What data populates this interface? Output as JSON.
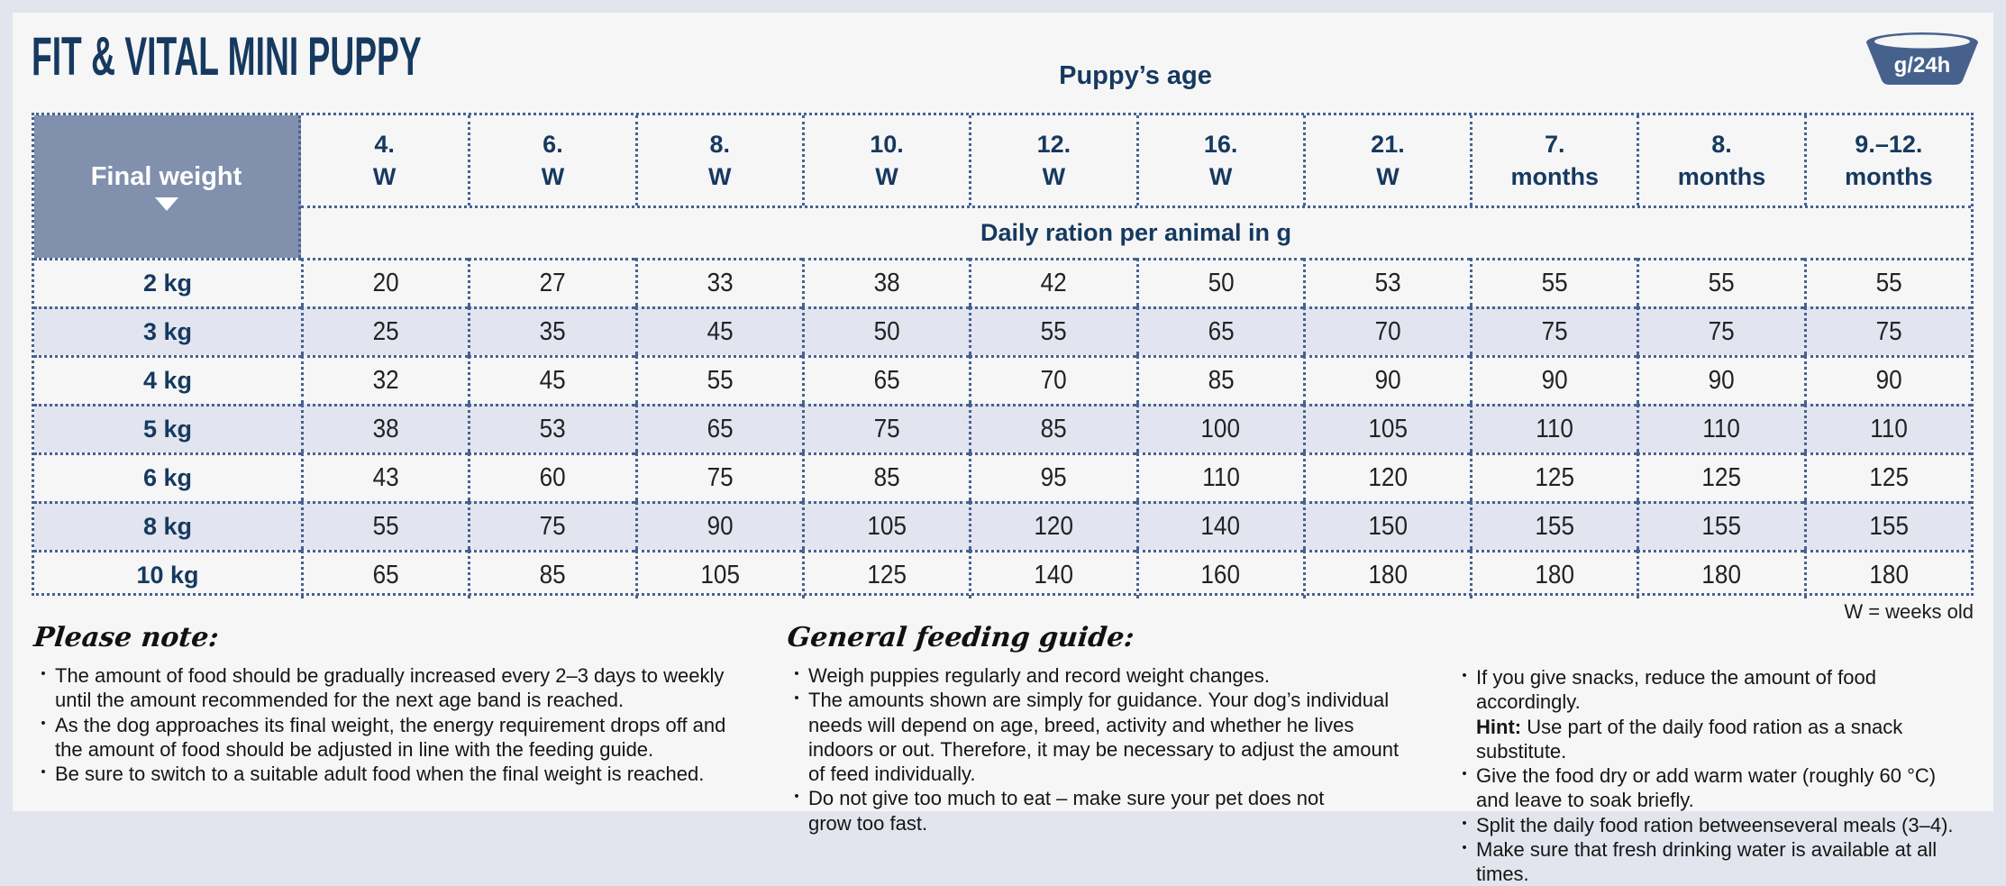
{
  "title": "FIT & VITAL MINI PUPPY",
  "bowl_icon": {
    "label": "g/24h"
  },
  "table": {
    "age_header": "Puppy’s age",
    "corner_label": "Final weight",
    "subheader": "Daily ration per animal in g",
    "columns": [
      {
        "line1": "4.",
        "line2": "W"
      },
      {
        "line1": "6.",
        "line2": "W"
      },
      {
        "line1": "8.",
        "line2": "W"
      },
      {
        "line1": "10.",
        "line2": "W"
      },
      {
        "line1": "12.",
        "line2": "W"
      },
      {
        "line1": "16.",
        "line2": "W"
      },
      {
        "line1": "21.",
        "line2": "W"
      },
      {
        "line1": "7.",
        "line2": "months"
      },
      {
        "line1": "8.",
        "line2": "months"
      },
      {
        "line1": "9.–12.",
        "line2": "months"
      }
    ],
    "rows": [
      {
        "weight": "2 kg",
        "values": [
          20,
          27,
          33,
          38,
          42,
          50,
          53,
          55,
          55,
          55
        ]
      },
      {
        "weight": "3 kg",
        "values": [
          25,
          35,
          45,
          50,
          55,
          65,
          70,
          75,
          75,
          75
        ]
      },
      {
        "weight": "4 kg",
        "values": [
          32,
          45,
          55,
          65,
          70,
          85,
          90,
          90,
          90,
          90
        ]
      },
      {
        "weight": "5 kg",
        "values": [
          38,
          53,
          65,
          75,
          85,
          100,
          105,
          110,
          110,
          110
        ]
      },
      {
        "weight": "6 kg",
        "values": [
          43,
          60,
          75,
          85,
          95,
          110,
          120,
          125,
          125,
          125
        ]
      },
      {
        "weight": "8 kg",
        "values": [
          55,
          75,
          90,
          105,
          120,
          140,
          150,
          155,
          155,
          155
        ]
      },
      {
        "weight": "10 kg",
        "values": [
          65,
          85,
          105,
          125,
          140,
          160,
          180,
          180,
          180,
          180
        ]
      }
    ],
    "footnote": "W = weeks old"
  },
  "chart_data": {
    "type": "table",
    "title": "FIT & VITAL MINI PUPPY — Daily ration per animal in g",
    "categories": [
      "4. W",
      "6. W",
      "8. W",
      "10. W",
      "12. W",
      "16. W",
      "21. W",
      "7. months",
      "8. months",
      "9.–12. months"
    ],
    "series": [
      {
        "name": "2 kg",
        "values": [
          20,
          27,
          33,
          38,
          42,
          50,
          53,
          55,
          55,
          55
        ]
      },
      {
        "name": "3 kg",
        "values": [
          25,
          35,
          45,
          50,
          55,
          65,
          70,
          75,
          75,
          75
        ]
      },
      {
        "name": "4 kg",
        "values": [
          32,
          45,
          55,
          65,
          70,
          85,
          90,
          90,
          90,
          90
        ]
      },
      {
        "name": "5 kg",
        "values": [
          38,
          53,
          65,
          75,
          85,
          100,
          105,
          110,
          110,
          110
        ]
      },
      {
        "name": "6 kg",
        "values": [
          43,
          60,
          75,
          85,
          95,
          110,
          120,
          125,
          125,
          125
        ]
      },
      {
        "name": "8 kg",
        "values": [
          55,
          75,
          90,
          105,
          120,
          140,
          150,
          155,
          155,
          155
        ]
      },
      {
        "name": "10 kg",
        "values": [
          65,
          85,
          105,
          125,
          140,
          160,
          180,
          180,
          180,
          180
        ]
      }
    ],
    "xlabel": "Puppy’s age",
    "ylabel": "Final weight"
  },
  "notes": [
    {
      "heading": "Please note:",
      "bullets": [
        [
          {
            "text": "The amount of food should be gradually increased every 2–3 days to weekly until the amount recommended for the next age band is reached."
          }
        ],
        [
          {
            "text": "As the dog approaches its final weight, the energy requirement drops off and the amount of food should be adjusted in line with the feeding guide."
          }
        ],
        [
          {
            "text": "Be sure to switch to a suitable adult food when the final weight is reached."
          }
        ]
      ]
    },
    {
      "heading": "General feeding guide:",
      "bullets": [
        [
          {
            "text": "Weigh puppies regularly and record weight changes."
          }
        ],
        [
          {
            "text": "The amounts shown are simply for guidance. Your dog’s individual needs will depend on age, breed, activity and whether he lives indoors or out. Therefore, it may be necessary to adjust the amount of feed individually."
          }
        ],
        [
          {
            "text": "Do not give too much to eat – make sure your pet does not"
          },
          {
            "break": true
          },
          {
            "text": "grow too fast."
          }
        ]
      ]
    },
    {
      "heading": "",
      "bullets": [
        [
          {
            "text": "If you give snacks, reduce the amount of food accordingly."
          },
          {
            "break": true
          },
          {
            "text": "Hint:",
            "bold": true
          },
          {
            "text": " Use part of the daily food ration as a snack substitute."
          }
        ],
        [
          {
            "text": "Give the food dry or add warm water (roughly 60 °C) and leave to soak briefly."
          }
        ],
        [
          {
            "text": "Split the daily food ration betweenseveral meals (3–4)."
          }
        ],
        [
          {
            "text": "Make sure that fresh drinking water is available at all times."
          }
        ]
      ]
    }
  ],
  "colors": {
    "navy": "#16395f",
    "slate": "#8090ad",
    "bowl": "#46618c",
    "dot": "#47628f",
    "rowalt": "#e2e5f0",
    "page": "#e2e5ee",
    "card": "#f6f6f7"
  }
}
